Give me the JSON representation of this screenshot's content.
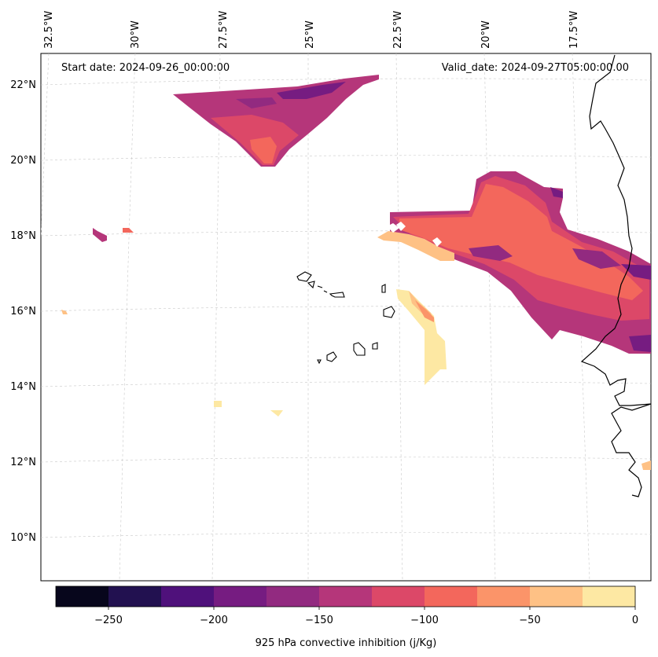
{
  "header": {
    "start_date": "Start date: 2024-09-26_00:00:00",
    "valid_date": "Valid_date: 2024-09-27T05:00:00.00"
  },
  "map": {
    "lon_labels": [
      "32.5°W",
      "30°W",
      "27.5°W",
      "25°W",
      "22.5°W",
      "20°W",
      "17.5°W"
    ],
    "lat_labels": [
      "22°N",
      "20°N",
      "18°N",
      "16°N",
      "14°N",
      "12°N",
      "10°N"
    ]
  },
  "colorbar": {
    "label": "925 hPa convective inhibition (j/Kg)",
    "ticks": [
      "−250",
      "−200",
      "−150",
      "−100",
      "−50",
      "0"
    ],
    "colors": [
      "#07061c",
      "#221150",
      "#4f117b",
      "#761c81",
      "#922a80",
      "#b5367a",
      "#dc4868",
      "#f3675c",
      "#fb9469",
      "#fec185",
      "#fde8a3"
    ]
  }
}
